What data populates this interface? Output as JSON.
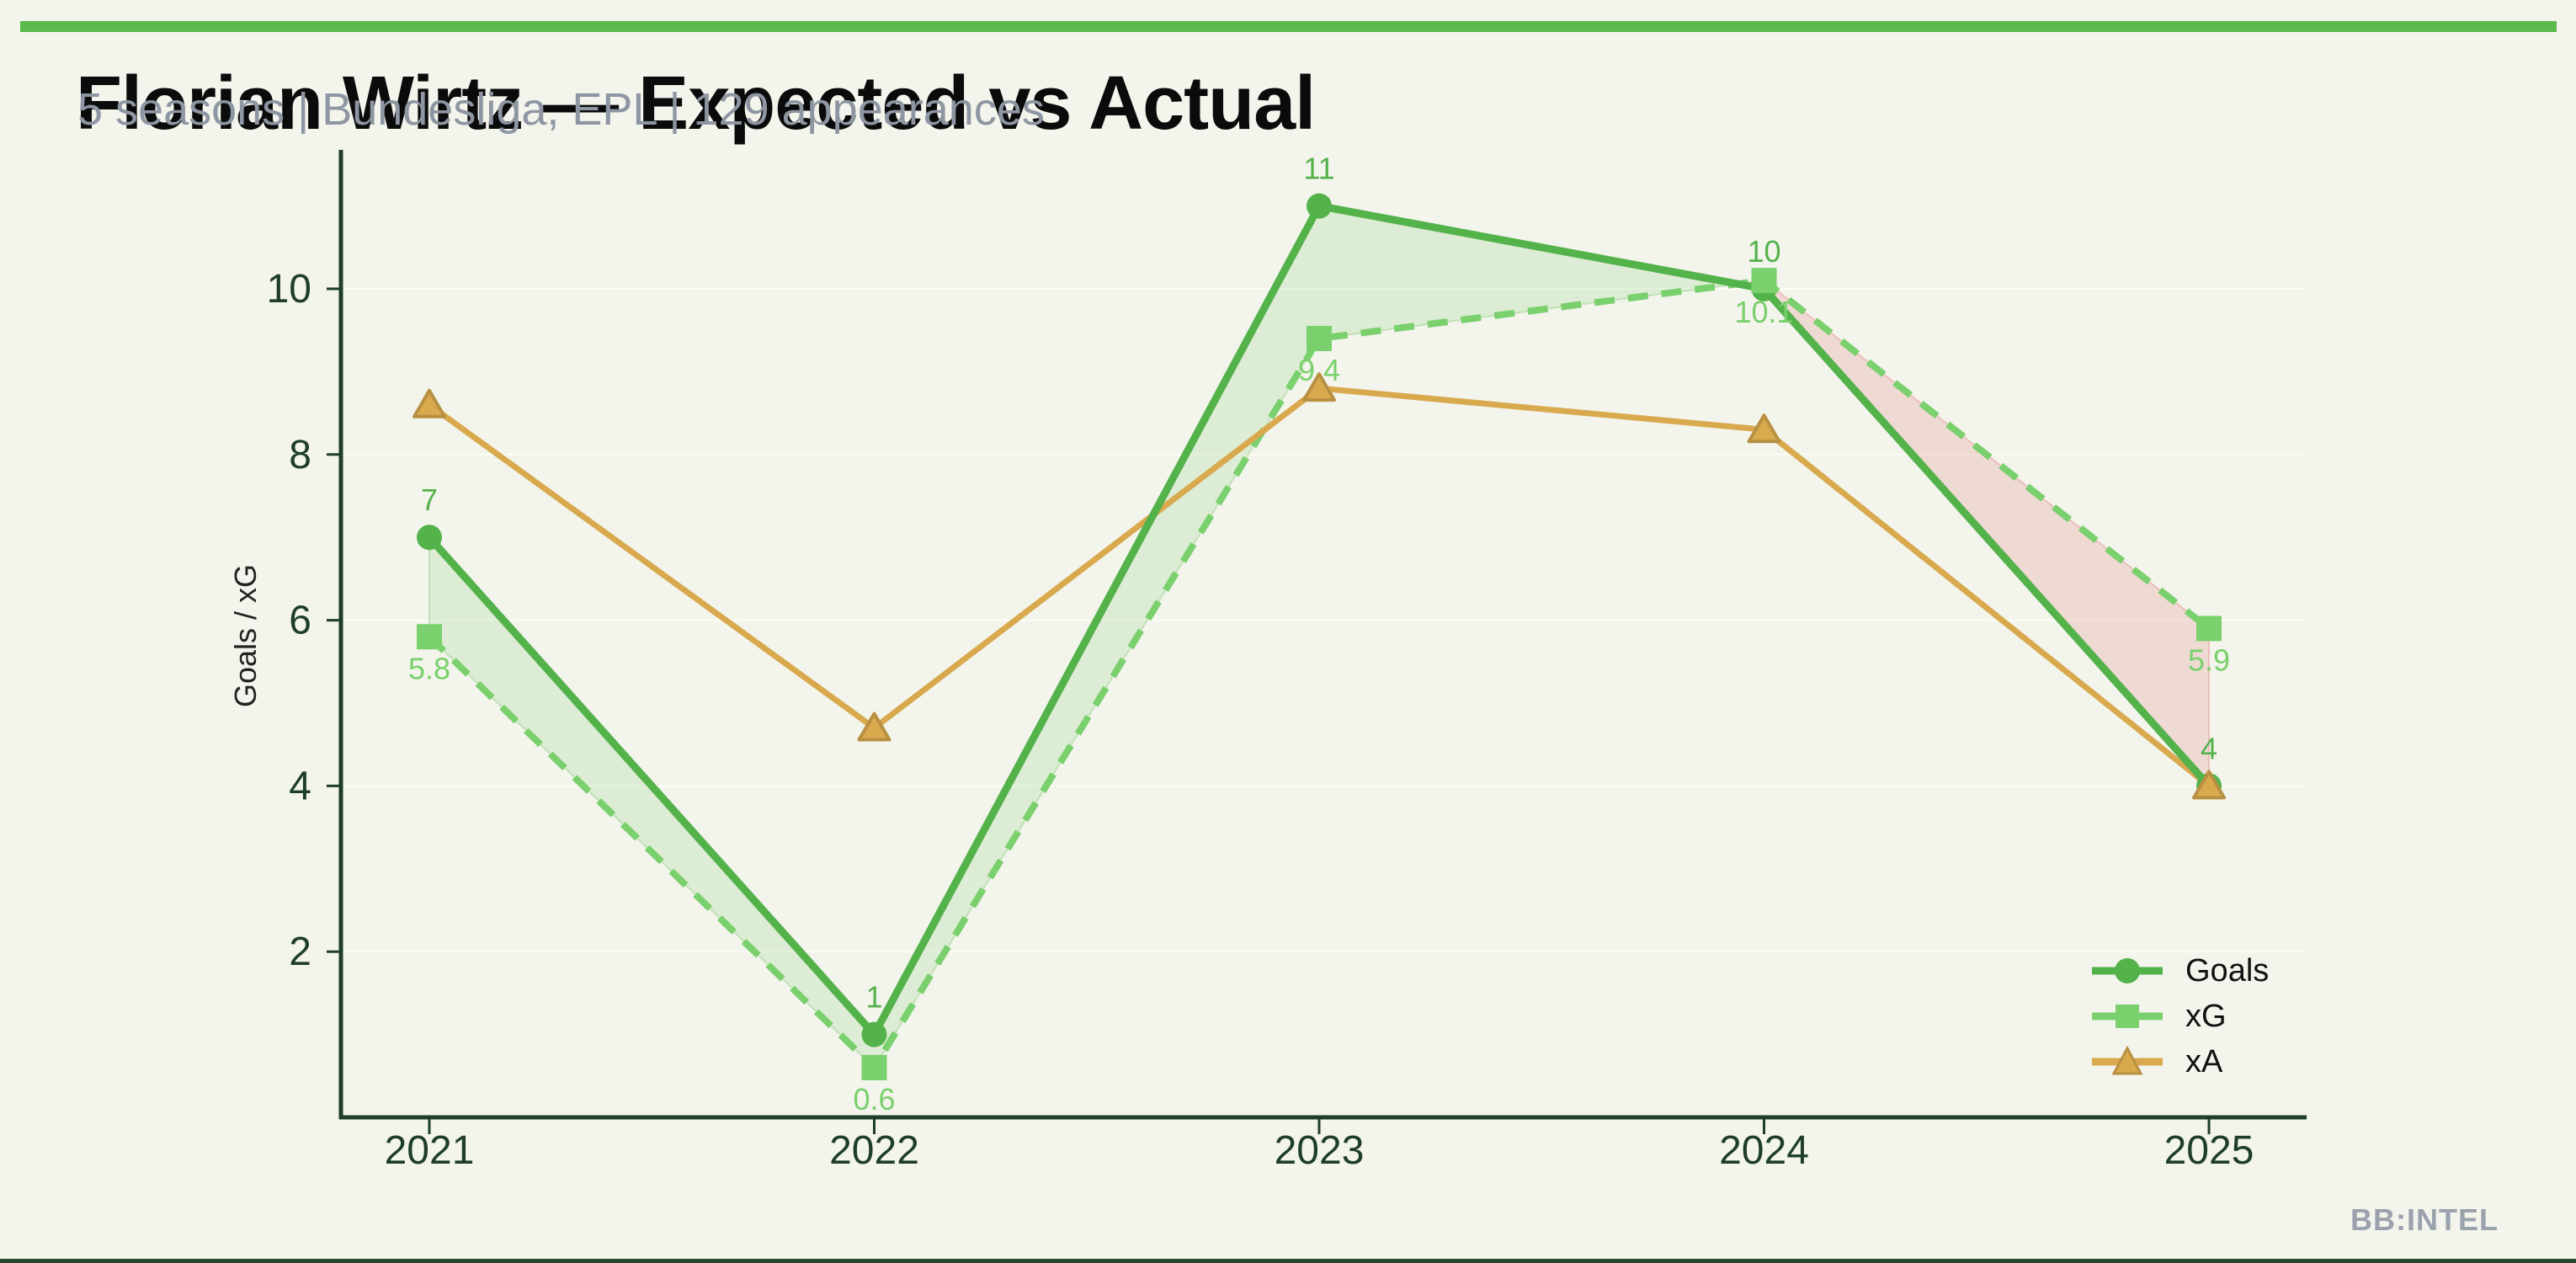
{
  "page": {
    "background_color": "#f3f4ec",
    "top_bar_color": "#5bbb4d",
    "bottom_bar_color": "#21492c",
    "watermark": "BB:INTEL"
  },
  "chart_data": {
    "type": "line",
    "title": "Florian Wirtz — Expected vs Actual",
    "subtitle": "5 seasons | Bundesliga, EPL | 129 appearances",
    "x_categories": [
      "2021",
      "2022",
      "2023",
      "2024",
      "2025"
    ],
    "series": [
      {
        "name": "Goals",
        "marker": "circle",
        "line_style": "solid",
        "color": "#54b24b",
        "values": [
          7,
          1,
          11,
          10,
          4
        ],
        "point_labels": [
          "7",
          "1",
          "11",
          "10",
          "4"
        ],
        "label_side": "above"
      },
      {
        "name": "xG",
        "marker": "square",
        "line_style": "dashed",
        "color": "#79d06c",
        "values": [
          5.8,
          0.6,
          9.4,
          10.1,
          5.9
        ],
        "point_labels": [
          "5.8",
          "0.6",
          "9.4",
          "10.1",
          "5.9"
        ],
        "label_side": "below"
      },
      {
        "name": "xA",
        "marker": "triangle",
        "line_style": "solid",
        "color": "#d9a94e",
        "values": [
          8.6,
          4.7,
          8.8,
          8.3,
          4.0
        ],
        "point_labels": [],
        "label_side": "none"
      }
    ],
    "fill_between": {
      "series_a": "Goals",
      "series_b": "xG",
      "positive_color": "#7cc86a",
      "positive_opacity": 0.18,
      "negative_color": "#e07a7a",
      "negative_opacity": 0.22
    },
    "xlabel": "",
    "ylabel": "Goals / xG",
    "yticks": [
      2,
      4,
      6,
      8,
      10
    ],
    "ylim": [
      0,
      11.7
    ],
    "grid": "horizontal-faint",
    "gridline_color": "#fbfcf3",
    "axis_color": "#1e3e28",
    "tick_label_color": "#1e3e28",
    "legend_position": "lower-right"
  }
}
